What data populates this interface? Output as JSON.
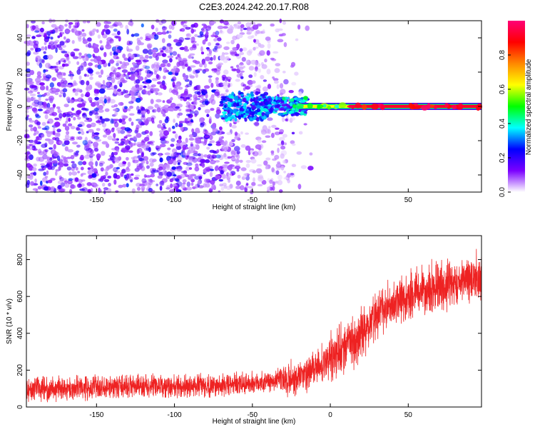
{
  "figure": {
    "title": "C2E3.2024.242.20.17.R08"
  },
  "colors": {
    "snr_line": "#ee2222",
    "frame": "#000000",
    "background": "#ffffff"
  },
  "chart_data": [
    {
      "type": "heatmap",
      "xlabel": "Height of straight line (km)",
      "ylabel": "Frequency (Hz)",
      "xlim": [
        -195,
        97
      ],
      "ylim": [
        -50,
        50
      ],
      "x_ticks": [
        -150,
        -100,
        -50,
        0,
        50
      ],
      "y_ticks": [
        -40,
        -20,
        0,
        20,
        40
      ],
      "colorbar": {
        "label": "Normalized spectral amplitude",
        "range": [
          0.0,
          1.0
        ],
        "ticks": [
          "0.0",
          "0.2",
          "0.4",
          "0.6",
          "0.8"
        ],
        "colormap": [
          "#ffffff",
          "#7b00ff",
          "#0000ff",
          "#00ffff",
          "#00ff00",
          "#ffff00",
          "#ff8800",
          "#ff0000",
          "#ff0077"
        ]
      },
      "regions": [
        {
          "x_range": [
            -195,
            -60
          ],
          "desc": "scattered noise",
          "amplitude": [
            0.05,
            0.3
          ]
        },
        {
          "x_range": [
            -60,
            -20
          ],
          "desc": "noise with emerging signal near 0 Hz",
          "amplitude": [
            0.05,
            0.45
          ]
        },
        {
          "x_range": [
            -20,
            97
          ],
          "desc": "narrow carrier line near 0 Hz",
          "amplitude": [
            0.7,
            1.0
          ]
        }
      ]
    },
    {
      "type": "line",
      "xlabel": "Height of straight line (km)",
      "ylabel": "SNR (10 * v/v)",
      "xlim": [
        -195,
        97
      ],
      "ylim": [
        0,
        930
      ],
      "x_ticks": [
        -150,
        -100,
        -50,
        0,
        50
      ],
      "y_ticks": [
        0,
        200,
        400,
        600,
        800
      ],
      "series": [
        {
          "x": [
            -195,
            -180,
            -160,
            -140,
            -120,
            -100,
            -80,
            -60,
            -50,
            -40,
            -30,
            -20,
            -10,
            0,
            10,
            20,
            30,
            40,
            50,
            60,
            70,
            80,
            90,
            97
          ],
          "y": [
            100,
            100,
            105,
            110,
            110,
            110,
            115,
            120,
            130,
            140,
            150,
            160,
            200,
            270,
            330,
            400,
            500,
            560,
            600,
            630,
            660,
            680,
            700,
            710
          ]
        }
      ]
    }
  ]
}
